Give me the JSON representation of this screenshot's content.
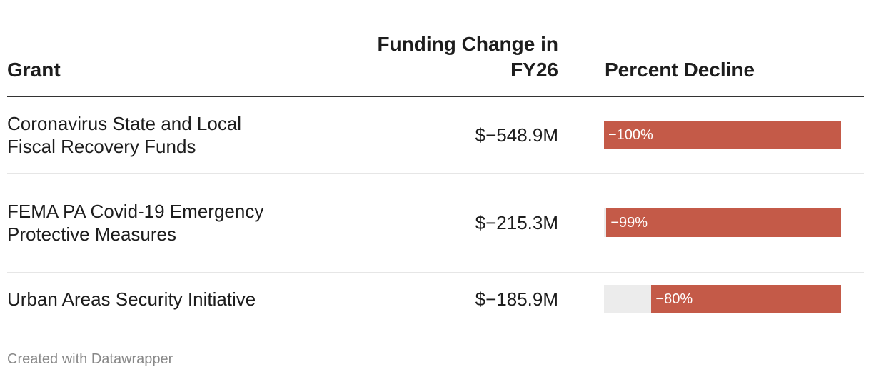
{
  "chart_data": {
    "type": "table",
    "columns": [
      "Grant",
      "Funding Change in FY26",
      "Percent Decline"
    ],
    "rows": [
      {
        "grant": "Coronavirus State and Local Fiscal Recovery Funds",
        "funding_change": "$−548.9M",
        "percent_label": "−100%",
        "percent_value": -100
      },
      {
        "grant": "FEMA PA Covid-19 Emergency Protective Measures",
        "funding_change": "$−215.3M",
        "percent_label": "−99%",
        "percent_value": -99
      },
      {
        "grant": "Urban Areas Security Initiative",
        "funding_change": "$−185.9M",
        "percent_label": "−80%",
        "percent_value": -80
      }
    ],
    "bar_color": "#c45a48",
    "bar_track_color": "#ececec"
  },
  "footer": "Created with Datawrapper"
}
